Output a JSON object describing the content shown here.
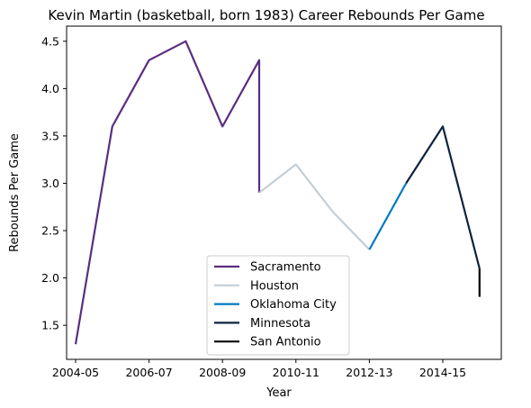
{
  "chart_data": {
    "type": "line",
    "title": "Kevin Martin (basketball, born 1983) Career Rebounds Per Game",
    "xlabel": "Year",
    "ylabel": "Rebounds Per Game",
    "x_ticks": [
      "2004-05",
      "2006-07",
      "2008-09",
      "2010-11",
      "2012-13",
      "2014-15"
    ],
    "y_ticks": [
      "1.5",
      "2.0",
      "2.5",
      "3.0",
      "3.5",
      "4.0",
      "4.5"
    ],
    "ylim": [
      1.14,
      4.66
    ],
    "grid": false,
    "legend_position": "lower-center",
    "series": [
      {
        "name": "Sacramento",
        "color": "#5a2d81",
        "points": [
          {
            "x": "2004-05",
            "y": 1.3
          },
          {
            "x": "2005-06",
            "y": 3.6
          },
          {
            "x": "2006-07",
            "y": 4.3
          },
          {
            "x": "2007-08",
            "y": 4.5
          },
          {
            "x": "2008-09",
            "y": 3.6
          },
          {
            "x": "2009-10",
            "y": 4.3
          },
          {
            "x": "2009-10",
            "y": 2.9
          }
        ]
      },
      {
        "name": "Houston",
        "color": "#c4ced4",
        "points": [
          {
            "x": "2009-10",
            "y": 2.9
          },
          {
            "x": "2010-11",
            "y": 3.2
          },
          {
            "x": "2011-12",
            "y": 2.7
          },
          {
            "x": "2012-13",
            "y": 2.3
          }
        ]
      },
      {
        "name": "Oklahoma City",
        "color": "#007ac1",
        "points": [
          {
            "x": "2012-13",
            "y": 2.3
          },
          {
            "x": "2013-14",
            "y": 3.0
          }
        ]
      },
      {
        "name": "Minnesota",
        "color": "#0c2340",
        "points": [
          {
            "x": "2013-14",
            "y": 3.0
          },
          {
            "x": "2014-15",
            "y": 3.6
          },
          {
            "x": "2015-16",
            "y": 2.1
          }
        ]
      },
      {
        "name": "San Antonio",
        "color": "#000000",
        "points": [
          {
            "x": "2015-16",
            "y": 2.1
          },
          {
            "x": "2015-16",
            "y": 1.8
          }
        ]
      }
    ]
  }
}
